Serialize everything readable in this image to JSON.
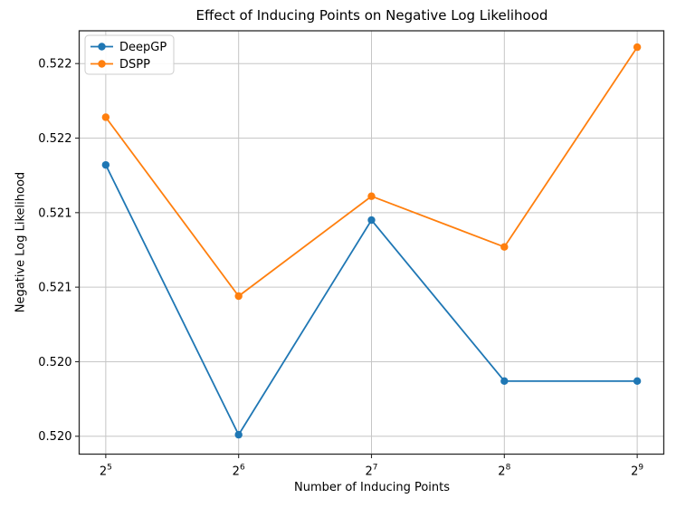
{
  "chart_data": {
    "type": "line",
    "title": "Effect of Inducing Points on Negative Log Likelihood",
    "xlabel": "Number of Inducing Points",
    "ylabel": "Negative Log Likelihood",
    "x_scale": "log2",
    "x": [
      32,
      64,
      128,
      256,
      512
    ],
    "x_tick_display": [
      "2^5",
      "2^6",
      "2^7",
      "2^8",
      "2^9"
    ],
    "series": [
      {
        "name": "DeepGP",
        "color": "#1f77b4",
        "marker": "circle",
        "values": [
          0.52182,
          0.52001,
          0.52145,
          0.52037,
          0.52037
        ]
      },
      {
        "name": "DSPP",
        "color": "#ff7f0e",
        "marker": "circle",
        "values": [
          0.52214,
          0.52094,
          0.52161,
          0.52127,
          0.52261
        ]
      }
    ],
    "x_ticks": [
      {
        "value": 32,
        "base": "2",
        "exp": "5"
      },
      {
        "value": 64,
        "base": "2",
        "exp": "6"
      },
      {
        "value": 128,
        "base": "2",
        "exp": "7"
      },
      {
        "value": 256,
        "base": "2",
        "exp": "8"
      },
      {
        "value": 512,
        "base": "2",
        "exp": "9"
      }
    ],
    "y_ticks": [
      {
        "value": 0.52,
        "label": "0.520"
      },
      {
        "value": 0.5205,
        "label": "0.520"
      },
      {
        "value": 0.521,
        "label": "0.521"
      },
      {
        "value": 0.5215,
        "label": "0.521"
      },
      {
        "value": 0.522,
        "label": "0.522"
      },
      {
        "value": 0.5225,
        "label": "0.522"
      }
    ],
    "xlim_log2": [
      4.8,
      9.2
    ],
    "ylim": [
      0.51988,
      0.52272
    ],
    "grid": true,
    "legend": {
      "position": "upper left",
      "entries": [
        "DeepGP",
        "DSPP"
      ]
    },
    "colors": {
      "grid": "#c6c6c6",
      "frame": "#2a2a2a",
      "text": "#000000",
      "legend_border": "#cccccc",
      "legend_bg": "rgba(255,255,255,0.9)"
    }
  }
}
